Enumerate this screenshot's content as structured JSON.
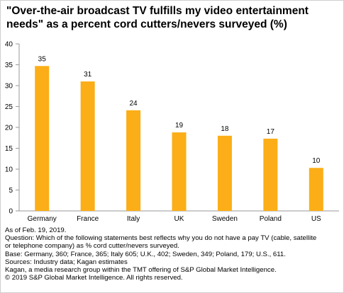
{
  "title_lines": [
    "\"Over-the-air broadcast TV fulfills my video entertainment",
    "needs\" as a percent cord cutters/nevers surveyed (%)"
  ],
  "notes": [
    "As of Feb. 19, 2019.",
    "Question: Which of the following statements best reflects why you do not have a pay TV (cable, satellite",
    "or telephone company) as % cord cutter/nevers surveyed.",
    "Base: Germany, 360; France, 365; Italy 605; U.K., 402; Sweden, 349; Poland, 179; U.S., 611.",
    "Sources: Industry data; Kagan estimates",
    "Kagan, a media research group within the TMT offering of S&P Global Market Intelligence.",
    "© 2019 S&P Global Market Intelligence. All rights reserved."
  ],
  "colors": {
    "bar": "#FBAE17",
    "axis": "#9a9a9a"
  },
  "chart_data": {
    "type": "bar",
    "title": "\"Over-the-air broadcast TV fulfills my video entertainment needs\" as a percent cord cutters/nevers surveyed (%)",
    "categories": [
      "Germany",
      "France",
      "Italy",
      "UK",
      "Sweden",
      "Poland",
      "US"
    ],
    "values": [
      35,
      31,
      24,
      19,
      18,
      17,
      10
    ],
    "plotted_values": [
      34.7,
      31.0,
      24.1,
      18.8,
      18.0,
      17.3,
      10.3
    ],
    "data_labels": [
      "35",
      "31",
      "24",
      "19",
      "18",
      "17",
      "10"
    ],
    "ylim": [
      0,
      40
    ],
    "yticks": [
      "0",
      "5",
      "10",
      "15",
      "20",
      "25",
      "30",
      "35",
      "40"
    ],
    "xlabel": "",
    "ylabel": "",
    "grid": false,
    "legend": "none"
  }
}
